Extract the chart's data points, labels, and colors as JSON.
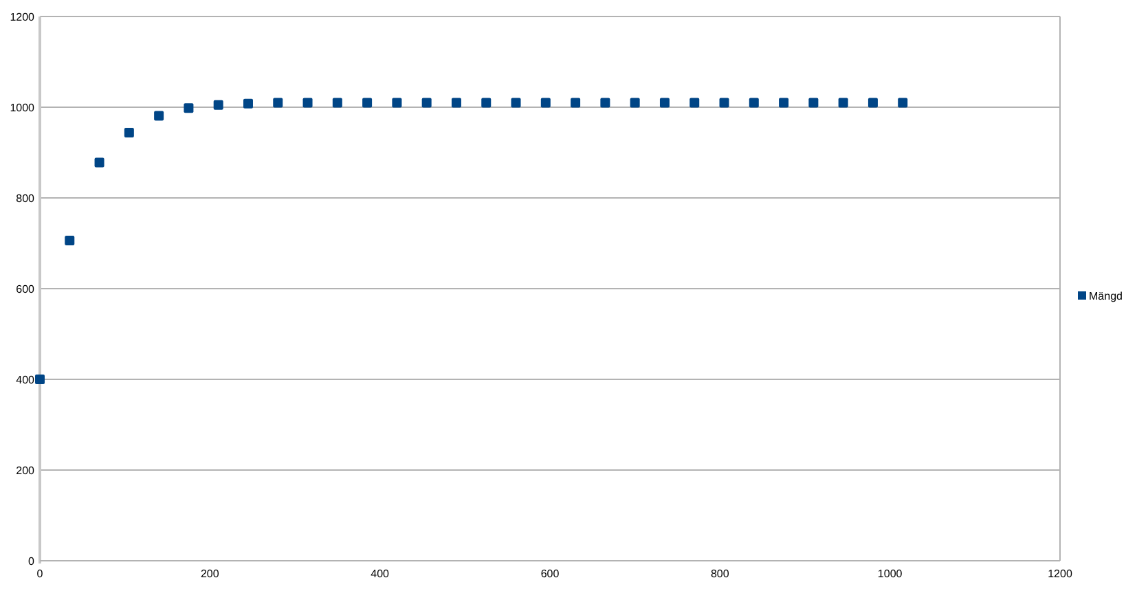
{
  "chart_data": {
    "type": "scatter",
    "x": [
      0,
      35,
      70,
      105,
      140,
      175,
      210,
      245,
      280,
      315,
      350,
      385,
      420,
      455,
      490,
      525,
      560,
      595,
      630,
      665,
      700,
      735,
      770,
      805,
      840,
      875,
      910,
      945,
      980,
      1015
    ],
    "series": [
      {
        "name": "Mängd",
        "color": "#004586",
        "values": [
          400,
          706,
          878,
          944,
          981,
          998,
          1005,
          1008,
          1010,
          1010,
          1010,
          1010,
          1010,
          1010,
          1010,
          1010,
          1010,
          1010,
          1010,
          1010,
          1010,
          1010,
          1010,
          1010,
          1010,
          1010,
          1010,
          1010,
          1010,
          1010
        ]
      }
    ],
    "xlim": [
      0,
      1200
    ],
    "xticks": [
      0,
      200,
      400,
      600,
      800,
      1000,
      1200
    ],
    "ylim": [
      0,
      1200
    ],
    "yticks": [
      0,
      200,
      400,
      600,
      800,
      1000,
      1200
    ],
    "grid": "y",
    "legend": "right",
    "marker": "square"
  }
}
